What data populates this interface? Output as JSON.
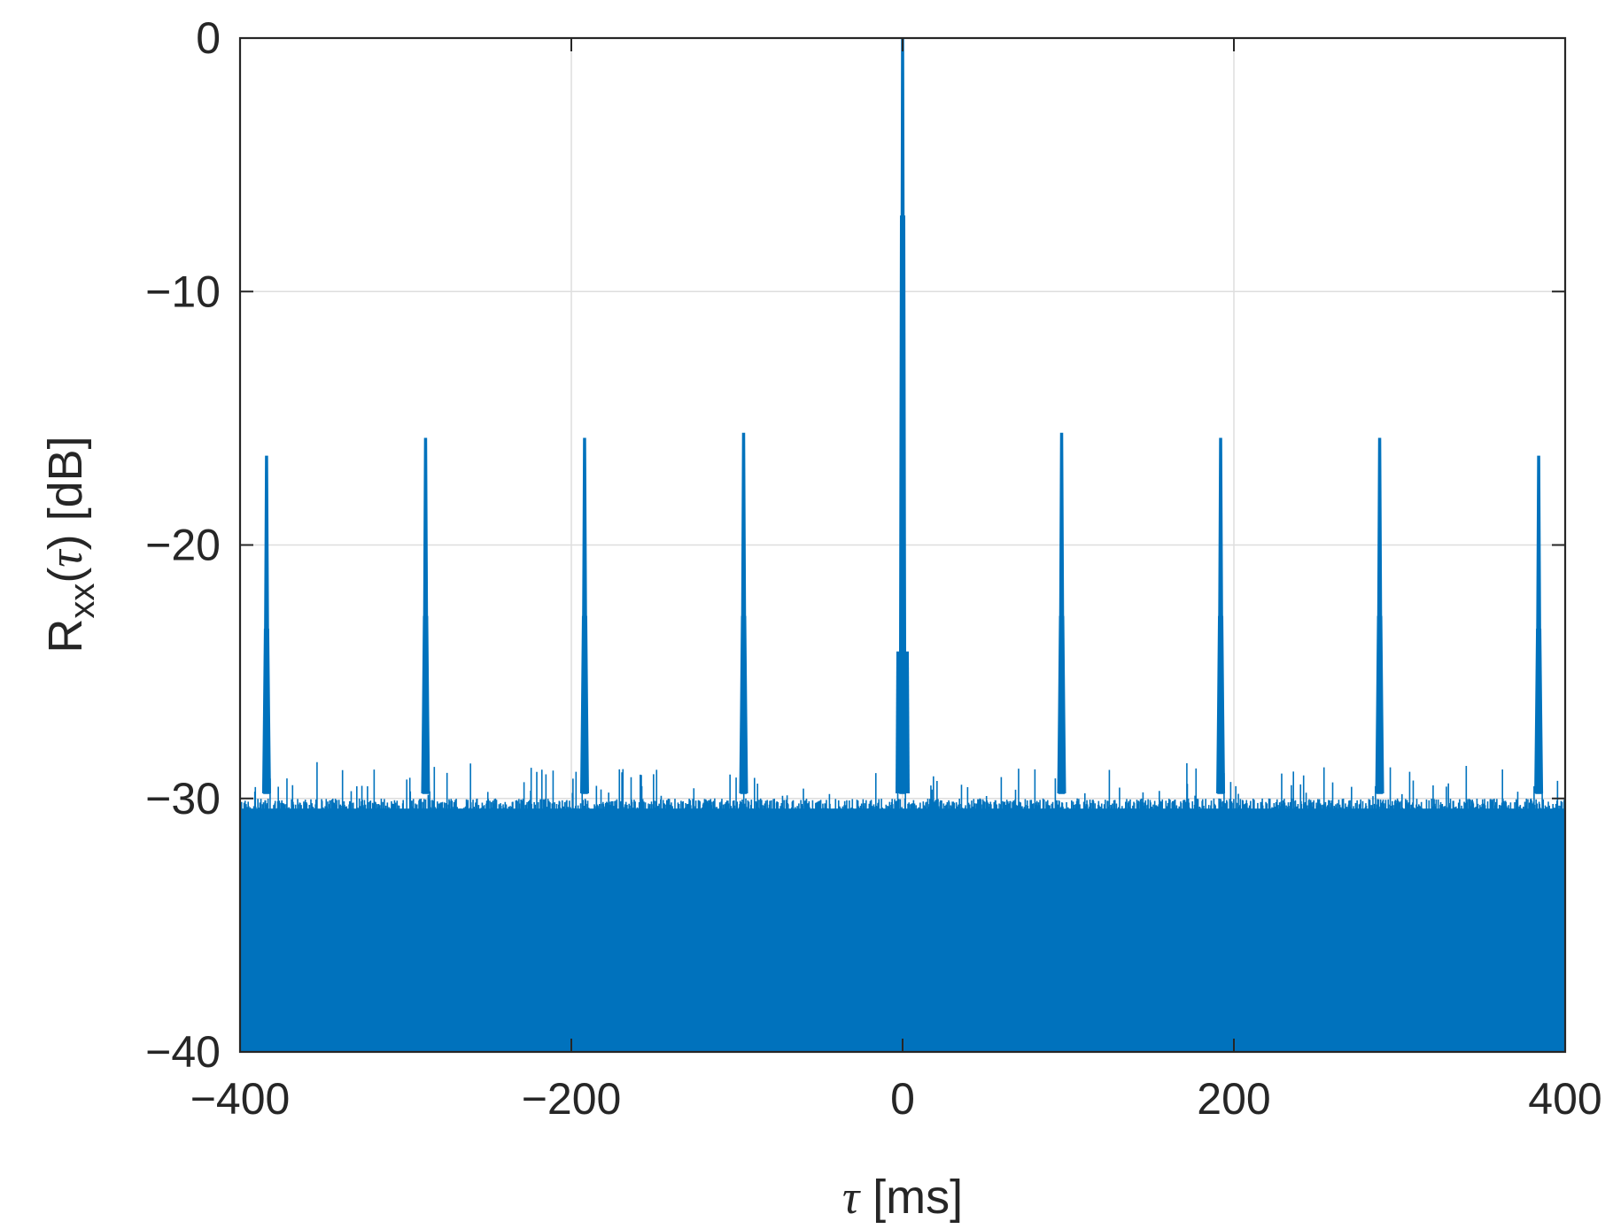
{
  "chart_data": {
    "type": "line",
    "title": "",
    "xlabel_symbol": "τ",
    "xlabel_unit": " [ms]",
    "ylabel_main": "R",
    "ylabel_sub": "xx",
    "ylabel_open": "(",
    "ylabel_symbol": "τ",
    "ylabel_rest": ") [dB]",
    "xlim": [
      -400,
      400
    ],
    "ylim": [
      -40,
      0
    ],
    "xticks": [
      -400,
      -200,
      0,
      200,
      400
    ],
    "xtick_labels": [
      "−400",
      "−200",
      "0",
      "200",
      "400"
    ],
    "yticks": [
      0,
      -10,
      -20,
      -30,
      -40
    ],
    "ytick_labels": [
      "0",
      "−10",
      "−20",
      "−30",
      "−40"
    ],
    "grid": true,
    "line_color": "#0072BD",
    "noise_floor_db": {
      "lower": -40,
      "upper_mean": -29.8,
      "upper_max": -28.5
    },
    "peaks": [
      {
        "x": -384,
        "y": -16.5,
        "shoulders": [
          -23.3,
          -26.7
        ]
      },
      {
        "x": -288,
        "y": -15.8,
        "shoulders": [
          -22.8,
          -26.5
        ]
      },
      {
        "x": -192,
        "y": -15.8,
        "shoulders": [
          -22.8,
          -26.5
        ]
      },
      {
        "x": -96,
        "y": -15.6,
        "shoulders": [
          -22.8,
          -26.5
        ]
      },
      {
        "x": 0,
        "y": 0,
        "shoulders": [
          -7.0,
          -24.2
        ]
      },
      {
        "x": 96,
        "y": -15.6,
        "shoulders": [
          -22.8,
          -26.5
        ]
      },
      {
        "x": 192,
        "y": -15.8,
        "shoulders": [
          -22.8,
          -26.5
        ]
      },
      {
        "x": 288,
        "y": -15.8,
        "shoulders": [
          -22.8,
          -26.5
        ]
      },
      {
        "x": 384,
        "y": -16.5,
        "shoulders": [
          -23.3,
          -26.7
        ]
      }
    ]
  }
}
